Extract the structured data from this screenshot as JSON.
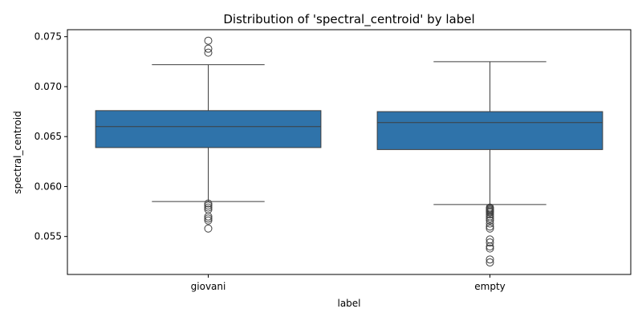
{
  "chart_data": {
    "type": "box",
    "title": "Distribution of 'spectral_centroid' by label",
    "xlabel": "label",
    "ylabel": "spectral_centroid",
    "ylim": [
      0.0512,
      0.0757
    ],
    "yticks": [
      0.055,
      0.06,
      0.065,
      0.07,
      0.075
    ],
    "ytick_labels": [
      "0.055",
      "0.060",
      "0.065",
      "0.070",
      "0.075"
    ],
    "grid": false,
    "box_color": "#2f73aa",
    "categories": [
      "giovani",
      "empty"
    ],
    "boxes": [
      {
        "name": "giovani",
        "q1": 0.0639,
        "median": 0.066,
        "q3": 0.0676,
        "whisker_low": 0.0585,
        "whisker_high": 0.0722,
        "outliers": [
          0.0746,
          0.0738,
          0.0734,
          0.0583,
          0.0581,
          0.0579,
          0.0577,
          0.057,
          0.0568,
          0.0566,
          0.0558
        ]
      },
      {
        "name": "empty",
        "q1": 0.0637,
        "median": 0.0664,
        "q3": 0.0675,
        "whisker_low": 0.0582,
        "whisker_high": 0.0725,
        "outliers": [
          0.0579,
          0.0578,
          0.0577,
          0.0576,
          0.0575,
          0.0574,
          0.0572,
          0.057,
          0.0568,
          0.0566,
          0.0563,
          0.056,
          0.0558,
          0.0547,
          0.0544,
          0.054,
          0.0538,
          0.0527,
          0.0524
        ]
      }
    ]
  }
}
